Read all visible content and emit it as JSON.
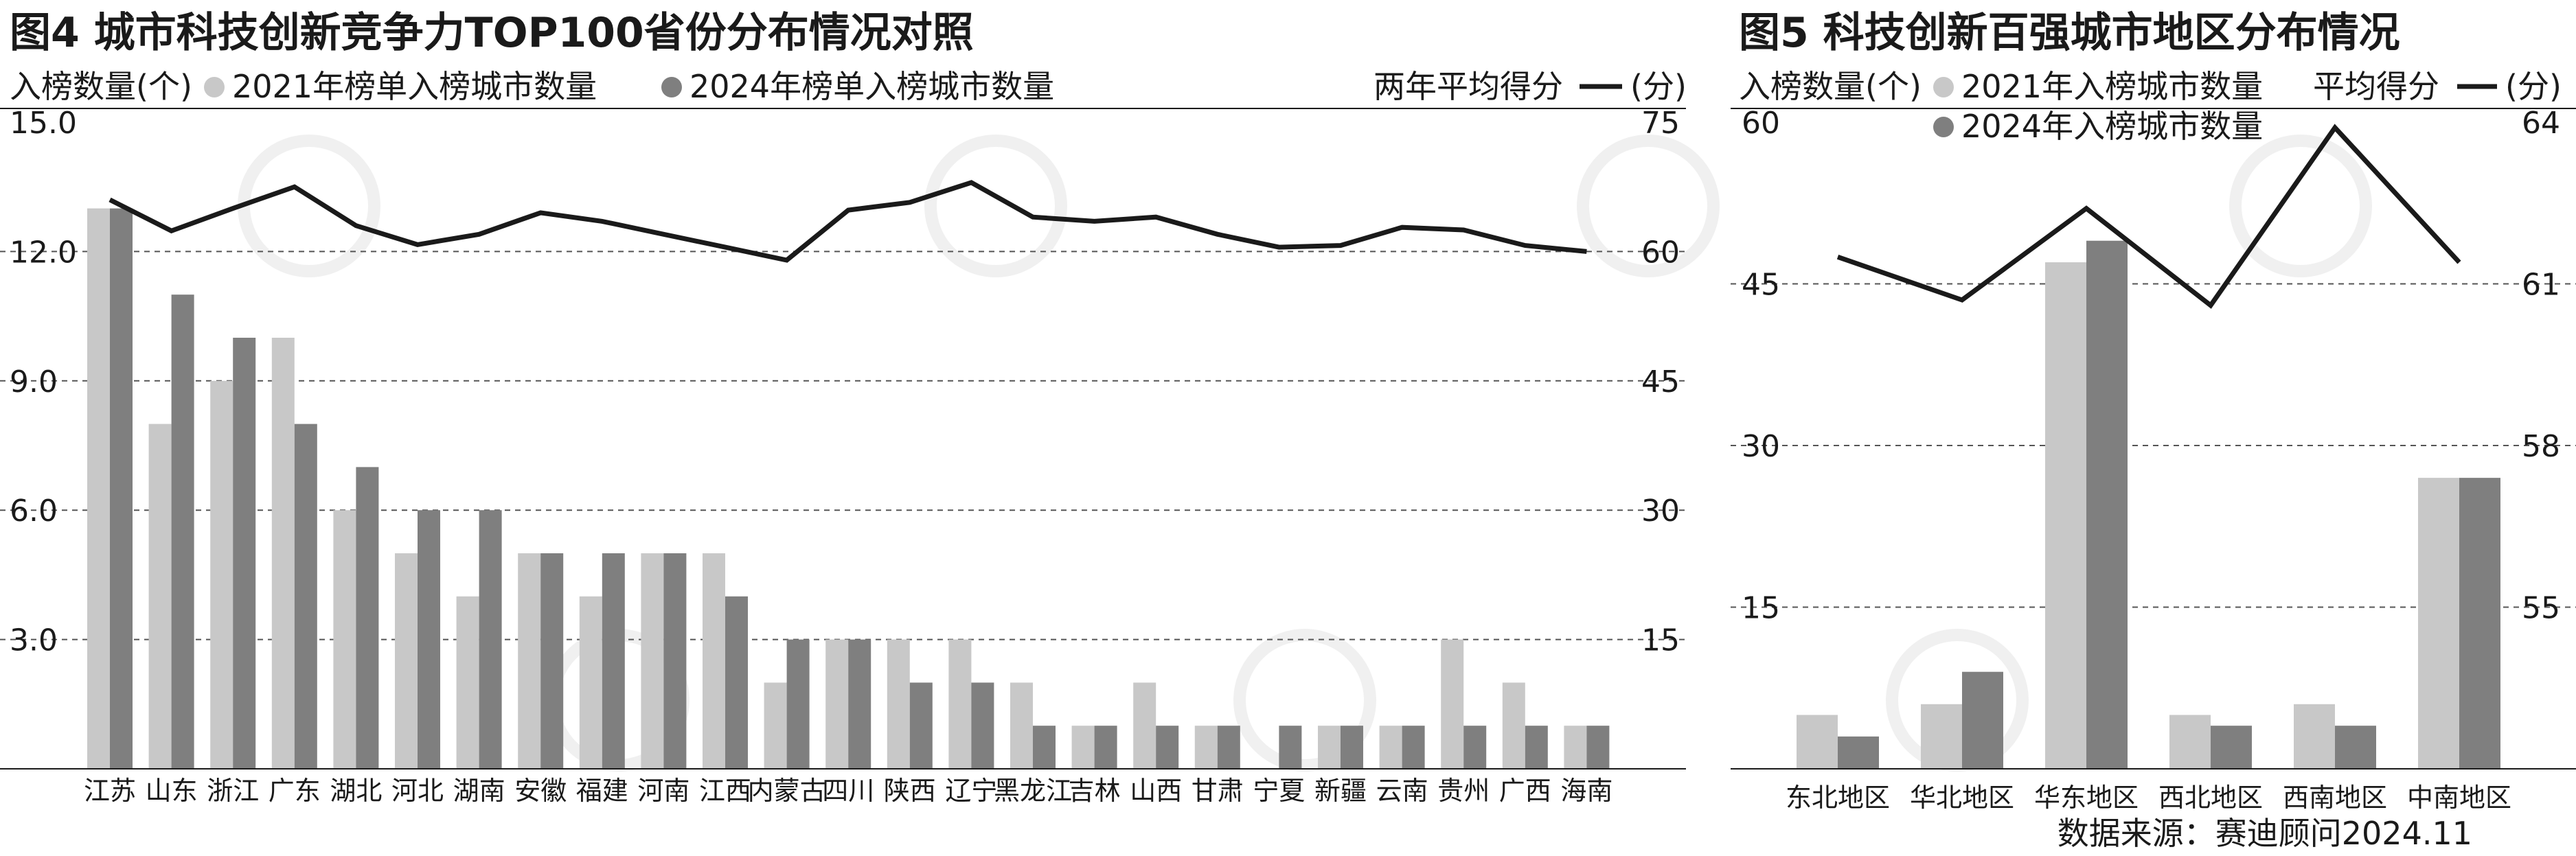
{
  "colors": {
    "series2021": "#c8c8c8",
    "series2024": "#7f7f7f",
    "line": "#1a1a1a",
    "grid": "#555555",
    "axis": "#1a1a1a"
  },
  "source_text": "数据来源：赛迪顾问2024.11",
  "chart_data": [
    {
      "type": "bar",
      "title": "图4 城市科技创新竞争力TOP100省份分布情况对照",
      "legend": {
        "left_axis_label": "入榜数量(个)",
        "series_2021": "2021年榜单入榜城市数量",
        "series_2024": "2024年榜单入榜城市数量",
        "line_label": "两年平均得分",
        "line_unit": "(分)"
      },
      "categories": [
        "江苏",
        "山东",
        "浙江",
        "广东",
        "湖北",
        "河北",
        "湖南",
        "安徽",
        "福建",
        "河南",
        "江西",
        "内蒙古",
        "四川",
        "陕西",
        "辽宁",
        "黑龙江",
        "吉林",
        "山西",
        "甘肃",
        "宁夏",
        "新疆",
        "云南",
        "贵州",
        "广西",
        "海南"
      ],
      "series": [
        {
          "name": "2021年榜单入榜城市数量",
          "values": [
            13,
            8,
            9,
            10,
            6,
            5,
            4,
            5,
            4,
            5,
            5,
            2,
            3,
            3,
            3,
            2,
            1,
            2,
            1,
            0,
            1,
            1,
            3,
            2,
            1
          ]
        },
        {
          "name": "2024年榜单入榜城市数量",
          "values": [
            13,
            11,
            10,
            8,
            7,
            6,
            6,
            5,
            5,
            5,
            4,
            3,
            3,
            2,
            2,
            1,
            1,
            1,
            1,
            1,
            1,
            1,
            1,
            1,
            1
          ]
        }
      ],
      "line": {
        "name": "两年平均得分",
        "values": [
          66,
          62.4,
          65,
          67.5,
          63,
          60.8,
          62,
          64.5,
          63.5,
          62,
          60.5,
          59,
          64.8,
          65.7,
          68,
          64,
          63.5,
          64,
          62,
          60.5,
          60.7,
          62.8,
          62.5,
          60.7,
          60
        ]
      },
      "ylim_left": [
        0,
        15
      ],
      "yticks_left": [
        "3.0",
        "6.0",
        "9.0",
        "12.0",
        "15.0"
      ],
      "ylim_right": [
        0,
        75
      ],
      "yticks_right": [
        "15",
        "30",
        "45",
        "60",
        "75"
      ],
      "grid": "dashed"
    },
    {
      "type": "bar",
      "title": "图5 科技创新百强城市地区分布情况",
      "legend": {
        "left_axis_label": "入榜数量(个)",
        "series_2021": "2021年入榜城市数量",
        "series_2024": "2024年入榜城市数量",
        "line_label": "平均得分",
        "line_unit": "(分)"
      },
      "categories": [
        "东北地区",
        "华北地区",
        "华东地区",
        "西北地区",
        "西南地区",
        "中南地区"
      ],
      "series": [
        {
          "name": "2021年入榜城市数量",
          "values": [
            5,
            6,
            47,
            5,
            6,
            27
          ]
        },
        {
          "name": "2024年入榜城市数量",
          "values": [
            3,
            9,
            49,
            4,
            4,
            27
          ]
        }
      ],
      "line": {
        "name": "平均得分",
        "values": [
          61.5,
          60.7,
          62.4,
          60.6,
          63.9,
          61.4
        ]
      },
      "ylim_left": [
        0,
        60
      ],
      "yticks_left": [
        "15",
        "30",
        "45",
        "60"
      ],
      "ylim_right": [
        52,
        64
      ],
      "yticks_right": [
        "55",
        "58",
        "61",
        "64"
      ],
      "grid": "dashed"
    }
  ]
}
